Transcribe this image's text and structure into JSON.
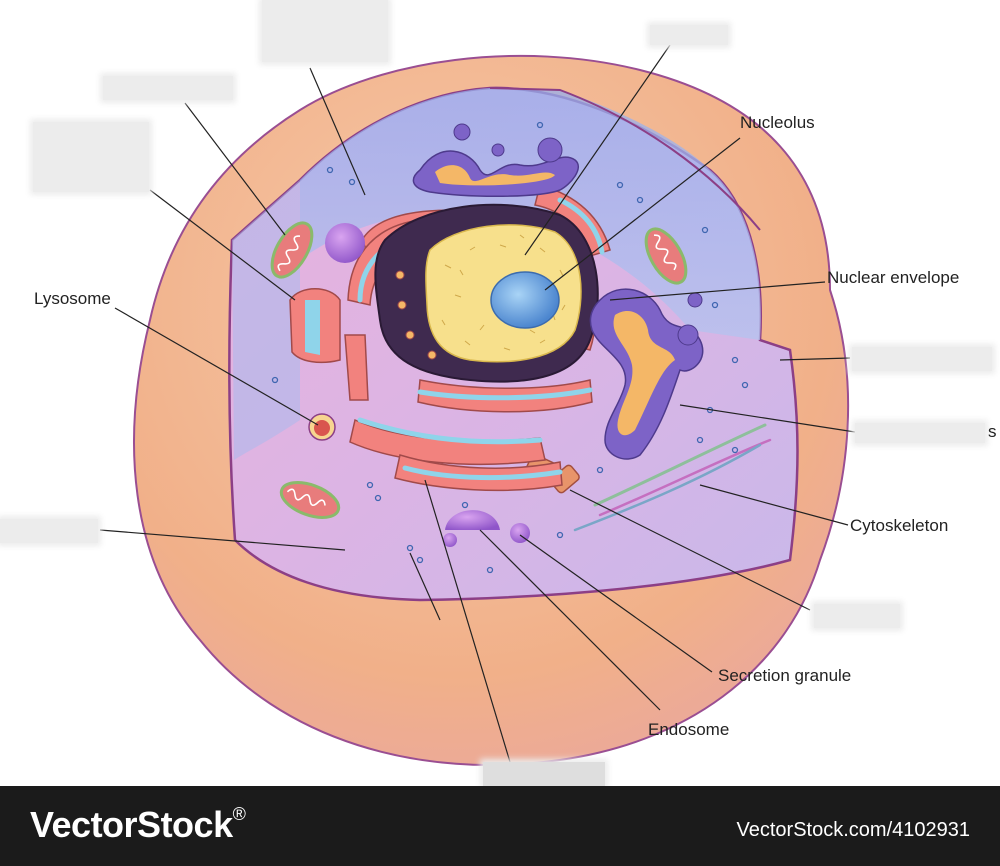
{
  "labels": {
    "nucleolus": "Nucleolus",
    "nuclear_envelope": "Nuclear envelope",
    "lysosome": "Lysosome",
    "cytoskeleton": "Cytoskeleton",
    "secretion_granule": "Secretion granule",
    "endosome": "Endosome",
    "partial_suffix": "s"
  },
  "footer": {
    "brand": "VectorStock",
    "registered": "®",
    "stock_id": "VectorStock.com/4102931"
  },
  "colors": {
    "outer_cell": "#f3b98f",
    "cytoplasm": "#e3b7e0",
    "cytoplasm_blue": "#9fb7ec",
    "nucleus": "#f7e08c",
    "nucleolus": "#5f9ad8",
    "er": "#f2827e",
    "er_channel": "#8fd4ea",
    "golgi": "#7d63c7",
    "golgi_inner": "#f4b767",
    "mitochondria": "#e87c7c",
    "membrane": "#8c3f86",
    "footer": "#1b1b1b"
  }
}
